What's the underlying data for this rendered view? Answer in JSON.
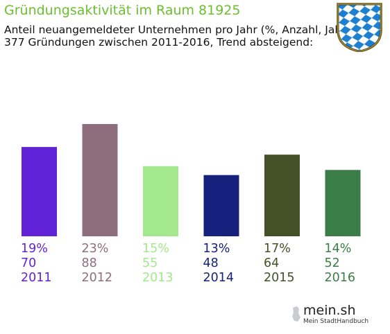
{
  "title": "Gründungsaktivität im Raum 81925",
  "subtitle_1": "Anteil neuangemeldeter Unternehmen pro Jahr (%, Anzahl, Jahr)",
  "subtitle_2": "377 Gründungen zwischen 2011-2016, Trend absteigend:",
  "crest_icon": "bavarian-lozenge-crest-icon",
  "logo": {
    "text": "mein.sh",
    "tagline": "Mein StadtHandbuch",
    "icon": "germany-map-icon"
  },
  "chart_data": {
    "type": "bar",
    "title": "Gründungsaktivität im Raum 81925",
    "categories": [
      "2011",
      "2012",
      "2013",
      "2014",
      "2015",
      "2016"
    ],
    "values": [
      70,
      88,
      55,
      48,
      64,
      52
    ],
    "percent_labels": [
      "19%",
      "23%",
      "15%",
      "13%",
      "17%",
      "14%"
    ],
    "colors": [
      "#6222d8",
      "#8e6e7c",
      "#a3e88c",
      "#15217c",
      "#435226",
      "#3a7d46"
    ],
    "xlabel": "",
    "ylabel": "",
    "ylim": [
      0,
      100
    ],
    "grid": false,
    "legend": "none"
  }
}
